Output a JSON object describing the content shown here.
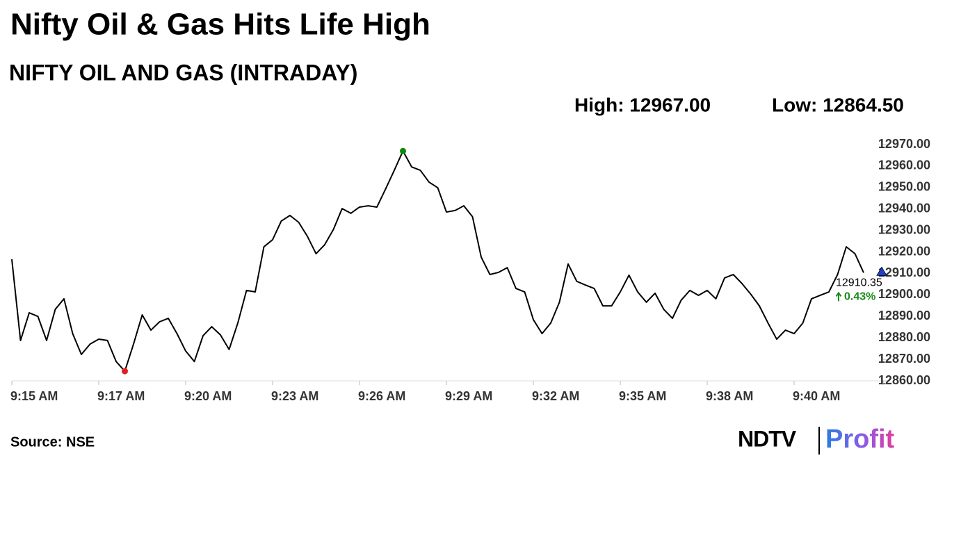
{
  "chart_data": {
    "type": "line",
    "title": "Nifty Oil & Gas Hits Life High",
    "subtitle": "NIFTY OIL AND GAS (INTRADAY)",
    "high_label": "High: 12967.00",
    "low_label": "Low: 12864.50",
    "last_label": "12910.35",
    "change_label": "0.43%",
    "source": "Source: NSE",
    "categories": [
      "9:15 AM",
      null,
      null,
      null,
      null,
      null,
      null,
      null,
      null,
      null,
      "9:17 AM",
      null,
      null,
      null,
      null,
      null,
      null,
      null,
      null,
      null,
      "9:20 AM",
      null,
      null,
      null,
      null,
      null,
      null,
      null,
      null,
      null,
      "9:23 AM",
      null,
      null,
      null,
      null,
      null,
      null,
      null,
      null,
      null,
      "9:26 AM",
      null,
      null,
      null,
      null,
      null,
      null,
      null,
      null,
      null,
      "9:29 AM",
      null,
      null,
      null,
      null,
      null,
      null,
      null,
      null,
      null,
      "9:32 AM",
      null,
      null,
      null,
      null,
      null,
      null,
      null,
      null,
      null,
      "9:35 AM",
      null,
      null,
      null,
      null,
      null,
      null,
      null,
      null,
      null,
      "9:38 AM",
      null,
      null,
      null,
      null,
      null,
      null,
      null,
      null,
      null,
      "9:40 AM",
      null,
      null,
      null,
      null,
      null,
      null,
      null,
      null,
      null,
      null
    ],
    "series": [
      {
        "color": "#000000",
        "values": [
          12916.6,
          12878.8,
          12891.7,
          12890.0,
          12878.8,
          12893.3,
          12898.2,
          12882.0,
          12872.3,
          12877.1,
          12879.4,
          12878.8,
          12869.0,
          12864.5,
          12877.1,
          12890.7,
          12883.6,
          12887.5,
          12889.1,
          12882.0,
          12873.9,
          12869.0,
          12881.0,
          12885.2,
          12881.4,
          12874.6,
          12886.9,
          12902.1,
          12901.4,
          12922.4,
          12925.7,
          12934.4,
          12937.0,
          12933.8,
          12927.3,
          12919.2,
          12923.4,
          12930.5,
          12940.2,
          12938.0,
          12940.9,
          12941.5,
          12940.9,
          12949.3,
          12958.0,
          12967.0,
          12959.6,
          12958.0,
          12952.5,
          12949.9,
          12938.6,
          12939.3,
          12941.5,
          12936.4,
          12917.6,
          12909.5,
          12910.5,
          12912.7,
          12903.0,
          12901.4,
          12888.5,
          12882.0,
          12886.9,
          12896.6,
          12914.4,
          12906.3,
          12904.6,
          12903.0,
          12894.9,
          12894.9,
          12901.4,
          12909.2,
          12901.4,
          12896.6,
          12900.8,
          12893.3,
          12889.1,
          12897.5,
          12902.1,
          12899.8,
          12902.1,
          12898.2,
          12907.9,
          12909.5,
          12905.3,
          12900.4,
          12894.9,
          12886.9,
          12879.4,
          12883.6,
          12882.0,
          12886.9,
          12898.2,
          12899.8,
          12901.4,
          12909.5,
          12922.4,
          12919.2,
          12910.35,
          null,
          null
        ]
      }
    ],
    "high_index": 45,
    "low_index": 13,
    "high_color": "#0a8a0a",
    "low_color": "#e02020",
    "last_color": "#1f3fd6",
    "ylim": [
      12860,
      12970
    ],
    "yticks": [
      {
        "value": 12970,
        "label": "12970.00"
      },
      {
        "value": 12960,
        "label": "12960.00"
      },
      {
        "value": 12950,
        "label": "12950.00"
      },
      {
        "value": 12940,
        "label": "12940.00"
      },
      {
        "value": 12930,
        "label": "12930.00"
      },
      {
        "value": 12920,
        "label": "12920.00"
      },
      {
        "value": 12910,
        "label": "12910.00"
      },
      {
        "value": 12900,
        "label": "12900.00"
      },
      {
        "value": 12890,
        "label": "12890.00"
      },
      {
        "value": 12880,
        "label": "12880.00"
      },
      {
        "value": 12870,
        "label": "12870.00"
      },
      {
        "value": 12860,
        "label": "12860.00"
      }
    ],
    "grid": false
  },
  "logo": {
    "left": "NDTV",
    "right": "Profit"
  }
}
